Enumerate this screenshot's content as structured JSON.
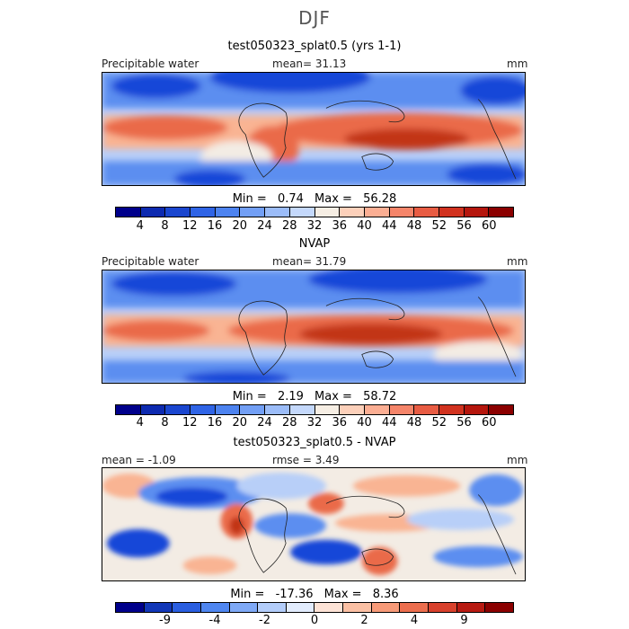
{
  "figure": {
    "season": "DJF",
    "panels": [
      {
        "title": "test050323_splat0.5 (yrs 1-1)",
        "left_label": "Precipitable water",
        "center_label": "mean=  31.13",
        "right_label": "mm",
        "stats": {
          "min_label": "Min =",
          "min_value": "0.74",
          "max_label": "Max =",
          "max_value": "56.28"
        },
        "colorbar": {
          "colors": [
            "#00008b",
            "#0d2ab0",
            "#1a46cf",
            "#2f64e6",
            "#4d83f0",
            "#729ff5",
            "#9bbcf8",
            "#c4d8fb",
            "#f6eee4",
            "#fcd0ba",
            "#fbae93",
            "#f5856a",
            "#e85c43",
            "#d1321f",
            "#b5160d",
            "#8b0000"
          ],
          "tick_labels": [
            "4",
            "8",
            "12",
            "16",
            "20",
            "24",
            "28",
            "32",
            "36",
            "40",
            "44",
            "48",
            "52",
            "56",
            "60"
          ]
        }
      },
      {
        "title": "NVAP",
        "left_label": "Precipitable water",
        "center_label": "mean=  31.79",
        "right_label": "mm",
        "stats": {
          "min_label": "Min =",
          "min_value": "2.19",
          "max_label": "Max =",
          "max_value": "58.72"
        },
        "colorbar": {
          "colors": [
            "#00008b",
            "#0d2ab0",
            "#1a46cf",
            "#2f64e6",
            "#4d83f0",
            "#729ff5",
            "#9bbcf8",
            "#c4d8fb",
            "#f6eee4",
            "#fcd0ba",
            "#fbae93",
            "#f5856a",
            "#e85c43",
            "#d1321f",
            "#b5160d",
            "#8b0000"
          ],
          "tick_labels": [
            "4",
            "8",
            "12",
            "16",
            "20",
            "24",
            "28",
            "32",
            "36",
            "40",
            "44",
            "48",
            "52",
            "56",
            "60"
          ]
        }
      },
      {
        "title": "test050323_splat0.5 - NVAP",
        "left_label": "mean = -1.09",
        "center_label": "rmse =   3.49",
        "right_label": "mm",
        "stats": {
          "min_label": "Min =",
          "min_value": "-17.36",
          "max_label": "Max =",
          "max_value": "8.36"
        },
        "colorbar": {
          "colors": [
            "#00008b",
            "#1237b8",
            "#2a5ee0",
            "#4f86f0",
            "#7fa9f6",
            "#b3cdfa",
            "#e2ecfd",
            "#fde3d6",
            "#fbc0a4",
            "#f79a78",
            "#ec6e4e",
            "#d8412c",
            "#b81a12",
            "#8b0000"
          ],
          "tick_labels": [
            "-9",
            "-4",
            "-2",
            "0",
            "2",
            "4",
            "9"
          ]
        }
      }
    ]
  },
  "map_colors": {
    "deep_blue": "#1346d8",
    "mid_blue": "#5b8ef0",
    "light_blue": "#b8cff8",
    "pale": "#f3ece4",
    "light_red": "#f9b493",
    "red": "#ea6a48",
    "dark_red": "#c23419",
    "coast": "#222222"
  }
}
